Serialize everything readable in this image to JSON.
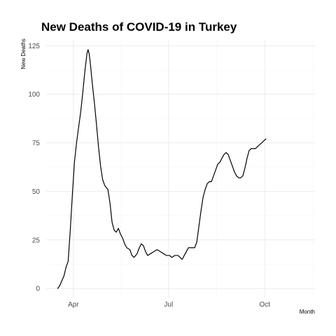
{
  "chart_data": {
    "type": "line",
    "title": "New Deaths of COVID-19 in Turkey",
    "xlabel": "Month",
    "ylabel": "New Deaths",
    "x_ticks": [
      {
        "label": "Apr",
        "value": "2020-04-01"
      },
      {
        "label": "Jul",
        "value": "2020-07-01"
      },
      {
        "label": "Oct",
        "value": "2020-10-01"
      }
    ],
    "xlim": [
      "2020-03-06",
      "2020-11-18"
    ],
    "y_ticks": [
      0,
      25,
      50,
      75,
      100,
      125
    ],
    "ylim": [
      -5,
      128
    ],
    "grid": true,
    "legend": "none",
    "line_color": "#000000",
    "grid_major_color": "#ebebeb",
    "grid_minor_color": "#f5f5f5",
    "series": [
      {
        "points": [
          [
            "2020-03-17",
            0
          ],
          [
            "2020-03-19",
            1.5
          ],
          [
            "2020-03-21",
            4
          ],
          [
            "2020-03-23",
            6.5
          ],
          [
            "2020-03-25",
            11
          ],
          [
            "2020-03-27",
            14
          ],
          [
            "2020-03-29",
            30
          ],
          [
            "2020-03-31",
            48
          ],
          [
            "2020-04-02",
            65
          ],
          [
            "2020-04-04",
            75
          ],
          [
            "2020-04-06",
            83
          ],
          [
            "2020-04-08",
            91
          ],
          [
            "2020-04-10",
            101
          ],
          [
            "2020-04-12",
            112
          ],
          [
            "2020-04-14",
            121
          ],
          [
            "2020-04-15",
            123
          ],
          [
            "2020-04-16",
            121
          ],
          [
            "2020-04-17",
            117
          ],
          [
            "2020-04-19",
            106
          ],
          [
            "2020-04-21",
            96
          ],
          [
            "2020-04-23",
            85
          ],
          [
            "2020-04-25",
            73
          ],
          [
            "2020-04-27",
            63
          ],
          [
            "2020-04-29",
            56
          ],
          [
            "2020-05-01",
            53
          ],
          [
            "2020-05-04",
            51
          ],
          [
            "2020-05-06",
            44
          ],
          [
            "2020-05-08",
            34
          ],
          [
            "2020-05-10",
            30
          ],
          [
            "2020-05-12",
            29
          ],
          [
            "2020-05-14",
            31
          ],
          [
            "2020-05-16",
            28
          ],
          [
            "2020-05-18",
            26
          ],
          [
            "2020-05-20",
            23
          ],
          [
            "2020-05-22",
            21
          ],
          [
            "2020-05-25",
            20
          ],
          [
            "2020-05-27",
            17
          ],
          [
            "2020-05-29",
            16
          ],
          [
            "2020-06-01",
            18
          ],
          [
            "2020-06-03",
            21
          ],
          [
            "2020-06-05",
            23
          ],
          [
            "2020-06-07",
            22
          ],
          [
            "2020-06-09",
            19
          ],
          [
            "2020-06-11",
            17
          ],
          [
            "2020-06-14",
            18
          ],
          [
            "2020-06-17",
            19
          ],
          [
            "2020-06-20",
            20
          ],
          [
            "2020-06-23",
            19
          ],
          [
            "2020-06-26",
            18
          ],
          [
            "2020-06-29",
            17
          ],
          [
            "2020-07-02",
            17
          ],
          [
            "2020-07-04",
            16
          ],
          [
            "2020-07-07",
            17
          ],
          [
            "2020-07-10",
            17
          ],
          [
            "2020-07-12",
            16
          ],
          [
            "2020-07-14",
            15
          ],
          [
            "2020-07-16",
            17
          ],
          [
            "2020-07-18",
            19
          ],
          [
            "2020-07-20",
            21
          ],
          [
            "2020-07-22",
            21
          ],
          [
            "2020-07-24",
            21
          ],
          [
            "2020-07-26",
            21
          ],
          [
            "2020-07-28",
            24
          ],
          [
            "2020-07-30",
            32
          ],
          [
            "2020-08-01",
            40
          ],
          [
            "2020-08-03",
            47
          ],
          [
            "2020-08-05",
            51
          ],
          [
            "2020-08-07",
            54
          ],
          [
            "2020-08-09",
            55
          ],
          [
            "2020-08-11",
            55
          ],
          [
            "2020-08-13",
            58
          ],
          [
            "2020-08-15",
            61
          ],
          [
            "2020-08-17",
            64
          ],
          [
            "2020-08-19",
            65
          ],
          [
            "2020-08-21",
            67
          ],
          [
            "2020-08-23",
            69
          ],
          [
            "2020-08-25",
            70
          ],
          [
            "2020-08-27",
            69
          ],
          [
            "2020-08-29",
            66
          ],
          [
            "2020-08-31",
            63
          ],
          [
            "2020-09-02",
            60
          ],
          [
            "2020-09-04",
            58
          ],
          [
            "2020-09-06",
            57
          ],
          [
            "2020-09-08",
            57
          ],
          [
            "2020-09-10",
            58
          ],
          [
            "2020-09-12",
            62
          ],
          [
            "2020-09-14",
            67
          ],
          [
            "2020-09-16",
            71
          ],
          [
            "2020-09-18",
            72
          ],
          [
            "2020-09-20",
            72
          ],
          [
            "2020-09-22",
            72
          ],
          [
            "2020-09-24",
            73
          ],
          [
            "2020-09-26",
            74
          ],
          [
            "2020-09-28",
            75
          ],
          [
            "2020-09-30",
            76
          ],
          [
            "2020-10-02",
            77
          ]
        ]
      }
    ]
  }
}
